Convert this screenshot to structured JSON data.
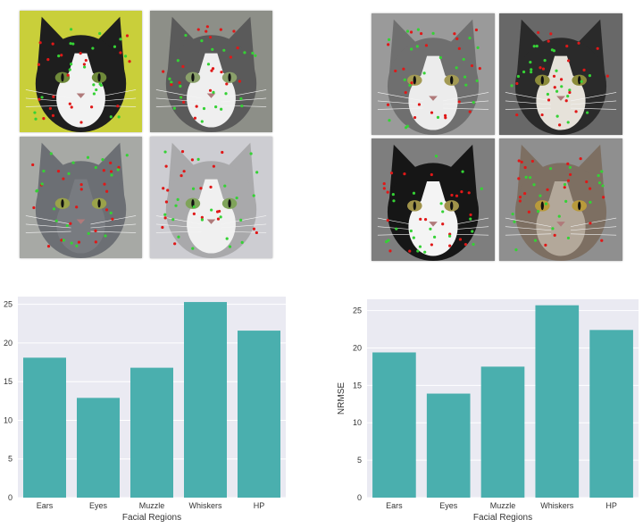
{
  "figure": {
    "left_photos": [
      {
        "label": "",
        "fur": "#1e1e1e",
        "face": "#f2f2f2",
        "bg": "#c9cf3a",
        "eye": "#6f8a3a"
      },
      {
        "label": "",
        "fur": "#5a5a5a",
        "face": "#efefef",
        "bg": "#8d8f88",
        "eye": "#8aa06a"
      },
      {
        "label": "",
        "fur": "#6c6f74",
        "face": "#787b80",
        "bg": "#a7a9a5",
        "eye": "#9aa24a"
      },
      {
        "label": "",
        "fur": "#a9a9ab",
        "face": "#f0f0f0",
        "bg": "#cdcdd2",
        "eye": "#7fa35a"
      }
    ],
    "right_photos": [
      {
        "label": "",
        "fur": "#6f6f6f",
        "face": "#ececec",
        "bg": "#9a9a9a",
        "eye": "#a39a54"
      },
      {
        "label": "",
        "fur": "#2a2a2a",
        "face": "#e6e2da",
        "bg": "#686868",
        "eye": "#8c8b3a"
      },
      {
        "label": "",
        "fur": "#161616",
        "face": "#f4f4f4",
        "bg": "#7e7e7e",
        "eye": "#a0934a"
      },
      {
        "label": "",
        "fur": "#7d6f62",
        "face": "#b3a89a",
        "bg": "#8f8f8f",
        "eye": "#b99a3b"
      }
    ],
    "marker_colors": {
      "green": "#35d235",
      "red": "#e01818"
    }
  },
  "chart_data": [
    {
      "type": "bar",
      "categories": [
        "Ears",
        "Eyes",
        "Muzzle",
        "Whiskers",
        "HP"
      ],
      "values": [
        18.1,
        12.9,
        16.8,
        25.3,
        21.6
      ],
      "xlabel": "Facial Regions",
      "ylabel": "",
      "ylim": [
        0,
        26
      ],
      "yticks": [
        "0",
        "5",
        "10",
        "15",
        "20",
        "25"
      ],
      "grid": true,
      "bar_color": "#4aafae",
      "background": "#eaeaf2"
    },
    {
      "type": "bar",
      "categories": [
        "Ears",
        "Eyes",
        "Muzzle",
        "Whiskers",
        "HP"
      ],
      "values": [
        19.4,
        13.9,
        17.5,
        25.7,
        22.4
      ],
      "xlabel": "Facial Regions",
      "ylabel": "NRMSE",
      "ylim": [
        0,
        26.5
      ],
      "yticks": [
        "0",
        "5",
        "10",
        "15",
        "20",
        "25"
      ],
      "grid": true,
      "bar_color": "#4aafae",
      "background": "#eaeaf2"
    }
  ]
}
